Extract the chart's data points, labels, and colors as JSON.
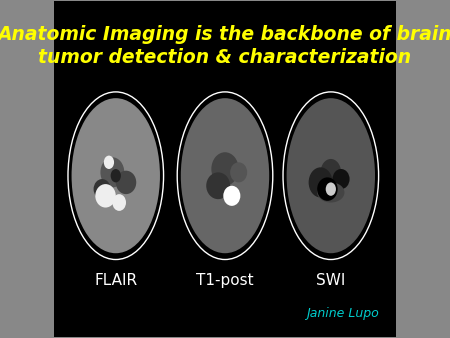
{
  "title_line1": "Anatomic Imaging is the backbone of brain",
  "title_line2": "tumor detection & characterization",
  "title_color": "#FFFF00",
  "title_fontsize": 13.5,
  "title_fontstyle": "italic",
  "title_fontweight": "bold",
  "bg_color": "#000000",
  "panel_bg": "#111111",
  "labels": [
    "FLAIR",
    "T1-post",
    "SWI"
  ],
  "label_color": "#FFFFFF",
  "label_fontsize": 11,
  "credit_text": "Janine Lupo",
  "credit_color": "#00CCCC",
  "credit_fontsize": 9,
  "outer_bg": "#888888"
}
